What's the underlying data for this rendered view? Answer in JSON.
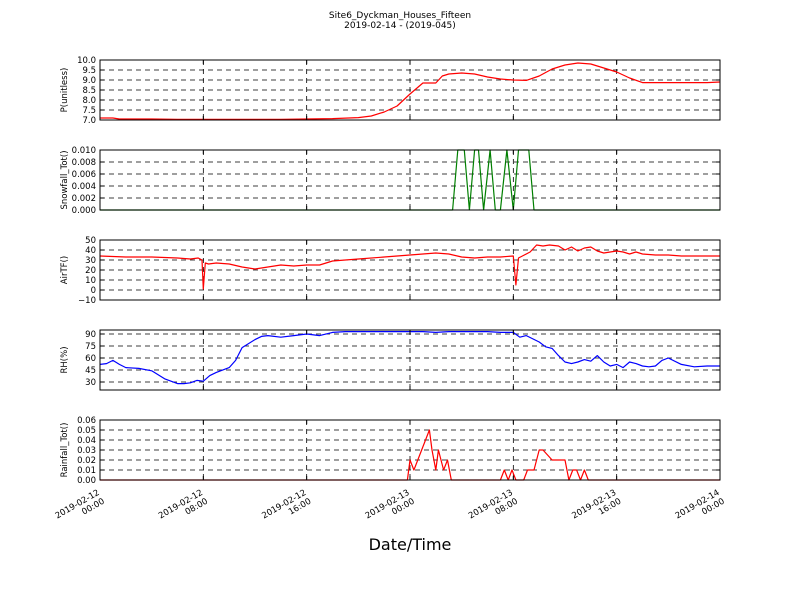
{
  "figure": {
    "title": "Site6_Dyckman_Houses_Fifteen",
    "subtitle": "2019-02-14 - (2019-045)",
    "xlabel": "Date/Time"
  },
  "chart_data": [
    {
      "type": "line",
      "ylabel": "P(unitless)",
      "ylim": [
        7.0,
        10.0
      ],
      "yticks": [
        7.0,
        7.5,
        8.0,
        8.5,
        9.0,
        9.5,
        10.0
      ],
      "ytick_labels": [
        "7.0",
        "7.5",
        "8.0",
        "8.5",
        "9.0",
        "9.5",
        "10.0"
      ],
      "color": "#ff0000",
      "grid": true,
      "series": [
        {
          "x": [
            0,
            1,
            1.5,
            2,
            4,
            6,
            8,
            10,
            12,
            14,
            16,
            18,
            20,
            21,
            22,
            23,
            24,
            25,
            26,
            26.5,
            27,
            28,
            29,
            30,
            31,
            32,
            33,
            34,
            35,
            36,
            37,
            38,
            39,
            40,
            41,
            42,
            43,
            44,
            45,
            46,
            47,
            48
          ],
          "y": [
            7.1,
            7.1,
            7.05,
            7.05,
            7.05,
            7.03,
            7.03,
            7.03,
            7.03,
            7.03,
            7.05,
            7.07,
            7.12,
            7.2,
            7.4,
            7.7,
            8.3,
            8.85,
            8.85,
            9.2,
            9.3,
            9.35,
            9.3,
            9.15,
            9.05,
            9.0,
            8.98,
            9.2,
            9.55,
            9.75,
            9.85,
            9.8,
            9.6,
            9.4,
            9.1,
            8.87,
            8.87,
            8.87,
            8.87,
            8.87,
            8.87,
            8.9
          ]
        }
      ]
    },
    {
      "type": "line",
      "ylabel": "Snowfall_Tot()",
      "ylim": [
        0.0,
        0.01
      ],
      "yticks": [
        0.0,
        0.002,
        0.004,
        0.006,
        0.008,
        0.01
      ],
      "ytick_labels": [
        "0.000",
        "0.002",
        "0.004",
        "0.006",
        "0.008",
        "0.010"
      ],
      "color": "#007f00",
      "grid": true,
      "series": [
        {
          "x": [
            0,
            27.3,
            27.7,
            28.2,
            28.6,
            29.0,
            29.3,
            29.7,
            30.2,
            30.6,
            31.0,
            31.5,
            32.0,
            32.4,
            32.8,
            33.2,
            33.6,
            48
          ],
          "y": [
            0,
            0,
            0.01,
            0.01,
            0,
            0.01,
            0.01,
            0,
            0.01,
            0,
            0,
            0.01,
            0,
            0.01,
            0.01,
            0.01,
            0,
            0
          ]
        }
      ]
    },
    {
      "type": "line",
      "ylabel": "AirTF()",
      "ylim": [
        -10,
        50
      ],
      "yticks": [
        -10,
        0,
        10,
        20,
        30,
        40,
        50
      ],
      "ytick_labels": [
        "−10",
        "0",
        "10",
        "20",
        "30",
        "40",
        "50"
      ],
      "color": "#ff0000",
      "grid": true,
      "series": [
        {
          "x": [
            0,
            2,
            4,
            6,
            7,
            7.6,
            7.9,
            8.0,
            8.15,
            8.4,
            9,
            10,
            11,
            12,
            13,
            14,
            15,
            16,
            17,
            18,
            20,
            22,
            24,
            25,
            26,
            27,
            28,
            29,
            30,
            31,
            32,
            32.2,
            32.4,
            32.7,
            33.3,
            33.8,
            34.3,
            34.8,
            35.5,
            36,
            36.5,
            37,
            37.5,
            38,
            38.5,
            39,
            39.5,
            40,
            40.5,
            41,
            41.5,
            42,
            43,
            44,
            45,
            46,
            47,
            48
          ],
          "y": [
            34,
            33,
            33,
            32,
            31,
            32,
            30,
            1,
            27,
            26,
            27,
            26,
            23,
            21,
            23,
            25,
            24,
            25,
            25,
            29,
            31,
            33,
            35,
            36,
            37,
            36,
            33,
            32,
            33,
            33,
            34,
            5,
            32,
            34,
            38,
            45,
            44,
            45,
            44,
            40,
            43,
            39,
            42,
            43,
            39,
            37,
            38,
            39,
            38,
            36,
            38,
            36,
            35,
            35,
            34,
            34,
            34,
            34
          ]
        }
      ]
    },
    {
      "type": "line",
      "ylabel": "RH(%)",
      "ylim": [
        20,
        95
      ],
      "yticks": [
        30,
        45,
        60,
        75,
        90
      ],
      "ytick_labels": [
        "30",
        "45",
        "60",
        "75",
        "90"
      ],
      "color": "#0000ff",
      "grid": true,
      "series": [
        {
          "x": [
            0,
            0.5,
            1,
            1.5,
            2,
            3,
            4,
            5,
            6,
            6.5,
            7,
            7.5,
            8,
            8.5,
            9,
            10,
            10.5,
            11,
            12,
            12.5,
            13,
            14,
            15,
            16,
            17,
            18,
            19,
            20,
            21,
            22,
            23,
            24,
            25,
            26,
            27,
            28,
            29,
            30,
            31,
            32,
            32.5,
            33,
            34,
            34.5,
            35,
            35.5,
            36,
            36.5,
            37,
            37.5,
            38,
            38.5,
            39,
            39.5,
            40,
            40.5,
            41,
            41.5,
            42,
            42.5,
            43,
            43.5,
            44,
            45,
            46,
            47,
            48
          ],
          "y": [
            52,
            53,
            57,
            52,
            48,
            47,
            44,
            34,
            28,
            28,
            29,
            32,
            31,
            38,
            42,
            48,
            57,
            73,
            83,
            87,
            88,
            86,
            88,
            90,
            88,
            92,
            93,
            93,
            93,
            93,
            93,
            93,
            93,
            92,
            93,
            93,
            93,
            93,
            92,
            92,
            86,
            88,
            80,
            74,
            72,
            63,
            55,
            53,
            55,
            58,
            56,
            63,
            55,
            50,
            52,
            48,
            55,
            53,
            50,
            49,
            50,
            57,
            60,
            52,
            49,
            50,
            50
          ]
        }
      ]
    },
    {
      "type": "line",
      "ylabel": "Rainfall_Tot()",
      "ylim": [
        0.0,
        0.06
      ],
      "yticks": [
        0.0,
        0.01,
        0.02,
        0.03,
        0.04,
        0.05,
        0.06
      ],
      "ytick_labels": [
        "0.00",
        "0.01",
        "0.02",
        "0.03",
        "0.04",
        "0.05",
        "0.06"
      ],
      "color": "#ff0000",
      "grid": true,
      "series": [
        {
          "x": [
            0,
            23.8,
            24.0,
            24.3,
            25.5,
            25.7,
            26.0,
            26.2,
            26.6,
            26.9,
            27.2,
            28,
            31,
            31.3,
            31.6,
            31.9,
            32.2,
            32.5,
            32.8,
            33.1,
            33.6,
            34.0,
            34.3,
            35,
            36,
            36.3,
            36.6,
            36.9,
            37.2,
            37.5,
            37.8,
            48
          ],
          "y": [
            0,
            0,
            0.02,
            0.01,
            0.05,
            0.03,
            0.01,
            0.03,
            0.01,
            0.02,
            0,
            0,
            0,
            0.01,
            0,
            0.01,
            0,
            0,
            0,
            0.01,
            0.01,
            0.03,
            0.03,
            0.02,
            0.02,
            0,
            0.01,
            0.01,
            0,
            0.01,
            0,
            0
          ]
        }
      ]
    }
  ],
  "x_axis": {
    "range_hours": [
      0,
      48
    ],
    "ticks": [
      0,
      8,
      16,
      24,
      32,
      40,
      48
    ],
    "tick_labels": [
      [
        "2019-02-12",
        "00:00"
      ],
      [
        "2019-02-12",
        "08:00"
      ],
      [
        "2019-02-12",
        "16:00"
      ],
      [
        "2019-02-13",
        "00:00"
      ],
      [
        "2019-02-13",
        "08:00"
      ],
      [
        "2019-02-13",
        "16:00"
      ],
      [
        "2019-02-14",
        "00:00"
      ]
    ]
  }
}
